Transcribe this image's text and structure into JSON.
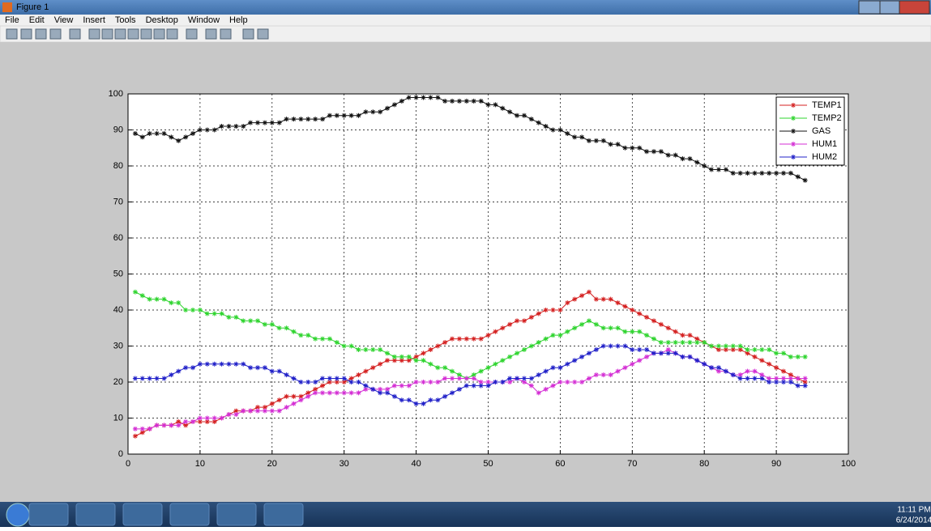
{
  "window": {
    "title": "Figure 1",
    "menu": [
      "File",
      "Edit",
      "View",
      "Insert",
      "Tools",
      "Desktop",
      "Window",
      "Help"
    ]
  },
  "taskbar": {
    "time": "11:11 PM",
    "date": "6/24/2014"
  },
  "chart_data": {
    "type": "line",
    "x": [
      1,
      2,
      3,
      4,
      5,
      6,
      7,
      8,
      9,
      10,
      11,
      12,
      13,
      14,
      15,
      16,
      17,
      18,
      19,
      20,
      21,
      22,
      23,
      24,
      25,
      26,
      27,
      28,
      29,
      30,
      31,
      32,
      33,
      34,
      35,
      36,
      37,
      38,
      39,
      40,
      41,
      42,
      43,
      44,
      45,
      46,
      47,
      48,
      49,
      50,
      51,
      52,
      53,
      54,
      55,
      56,
      57,
      58,
      59,
      60,
      61,
      62,
      63,
      64,
      65,
      66,
      67,
      68,
      69,
      70,
      71,
      72,
      73,
      74,
      75,
      76,
      77,
      78,
      79,
      80,
      81,
      82,
      83,
      84,
      85,
      86,
      87,
      88,
      89,
      90,
      91,
      92,
      93,
      94
    ],
    "series": [
      {
        "name": "TEMP1",
        "color": "#d42020",
        "values": [
          5,
          6,
          7,
          8,
          8,
          8,
          9,
          8,
          9,
          9,
          9,
          9,
          10,
          11,
          12,
          12,
          12,
          13,
          13,
          14,
          15,
          16,
          16,
          16,
          17,
          18,
          19,
          20,
          20,
          20,
          21,
          22,
          23,
          24,
          25,
          26,
          26,
          26,
          26,
          27,
          28,
          29,
          30,
          31,
          32,
          32,
          32,
          32,
          32,
          33,
          34,
          35,
          36,
          37,
          37,
          38,
          39,
          40,
          40,
          40,
          42,
          43,
          44,
          45,
          43,
          43,
          43,
          42,
          41,
          40,
          39,
          38,
          37,
          36,
          35,
          34,
          33,
          33,
          32,
          31,
          30,
          29,
          29,
          29,
          29,
          28,
          27,
          26,
          25,
          24,
          23,
          22,
          21,
          20
        ]
      },
      {
        "name": "TEMP2",
        "color": "#2ed42e",
        "values": [
          45,
          44,
          43,
          43,
          43,
          42,
          42,
          40,
          40,
          40,
          39,
          39,
          39,
          38,
          38,
          37,
          37,
          37,
          36,
          36,
          35,
          35,
          34,
          33,
          33,
          32,
          32,
          32,
          31,
          30,
          30,
          29,
          29,
          29,
          29,
          28,
          27,
          27,
          27,
          26,
          26,
          25,
          24,
          24,
          23,
          22,
          21,
          22,
          23,
          24,
          25,
          26,
          27,
          28,
          29,
          30,
          31,
          32,
          33,
          33,
          34,
          35,
          36,
          37,
          36,
          35,
          35,
          35,
          34,
          34,
          34,
          33,
          32,
          31,
          31,
          31,
          31,
          31,
          31,
          31,
          30,
          30,
          30,
          30,
          30,
          29,
          29,
          29,
          29,
          28,
          28,
          27,
          27,
          27
        ]
      },
      {
        "name": "GAS",
        "color": "#111111",
        "values": [
          89,
          88,
          89,
          89,
          89,
          88,
          87,
          88,
          89,
          90,
          90,
          90,
          91,
          91,
          91,
          91,
          92,
          92,
          92,
          92,
          92,
          93,
          93,
          93,
          93,
          93,
          93,
          94,
          94,
          94,
          94,
          94,
          95,
          95,
          95,
          96,
          97,
          98,
          99,
          99,
          99,
          99,
          99,
          98,
          98,
          98,
          98,
          98,
          98,
          97,
          97,
          96,
          95,
          94,
          94,
          93,
          92,
          91,
          90,
          90,
          89,
          88,
          88,
          87,
          87,
          87,
          86,
          86,
          85,
          85,
          85,
          84,
          84,
          84,
          83,
          83,
          82,
          82,
          81,
          80,
          79,
          79,
          79,
          78,
          78,
          78,
          78,
          78,
          78,
          78,
          78,
          78,
          77,
          76
        ]
      },
      {
        "name": "HUM1",
        "color": "#d42ed4",
        "values": [
          7,
          7,
          7,
          8,
          8,
          8,
          8,
          9,
          9,
          10,
          10,
          10,
          10,
          11,
          11,
          12,
          12,
          12,
          12,
          12,
          12,
          13,
          14,
          15,
          16,
          17,
          17,
          17,
          17,
          17,
          17,
          17,
          18,
          18,
          18,
          18,
          19,
          19,
          19,
          20,
          20,
          20,
          20,
          21,
          21,
          21,
          21,
          21,
          20,
          20,
          20,
          20,
          20,
          21,
          20,
          19,
          17,
          18,
          19,
          20,
          20,
          20,
          20,
          21,
          22,
          22,
          22,
          23,
          24,
          25,
          26,
          27,
          28,
          28,
          29,
          28,
          27,
          27,
          26,
          25,
          24,
          23,
          23,
          22,
          22,
          23,
          23,
          22,
          21,
          21,
          21,
          21,
          21,
          21
        ]
      },
      {
        "name": "HUM2",
        "color": "#2020c8",
        "values": [
          21,
          21,
          21,
          21,
          21,
          22,
          23,
          24,
          24,
          25,
          25,
          25,
          25,
          25,
          25,
          25,
          24,
          24,
          24,
          23,
          23,
          22,
          21,
          20,
          20,
          20,
          21,
          21,
          21,
          21,
          20,
          20,
          19,
          18,
          17,
          17,
          16,
          15,
          15,
          14,
          14,
          15,
          15,
          16,
          17,
          18,
          19,
          19,
          19,
          19,
          20,
          20,
          21,
          21,
          21,
          21,
          22,
          23,
          24,
          24,
          25,
          26,
          27,
          28,
          29,
          30,
          30,
          30,
          30,
          29,
          29,
          29,
          28,
          28,
          28,
          28,
          27,
          27,
          26,
          25,
          24,
          24,
          23,
          22,
          21,
          21,
          21,
          21,
          20,
          20,
          20,
          20,
          19,
          19
        ]
      }
    ],
    "xlim": [
      0,
      100
    ],
    "xticks": [
      0,
      10,
      20,
      30,
      40,
      50,
      60,
      70,
      80,
      90,
      100
    ],
    "ylim": [
      0,
      100
    ],
    "yticks": [
      0,
      10,
      20,
      30,
      40,
      50,
      60,
      70,
      80,
      90,
      100
    ],
    "grid": true,
    "legend": "northeast"
  }
}
